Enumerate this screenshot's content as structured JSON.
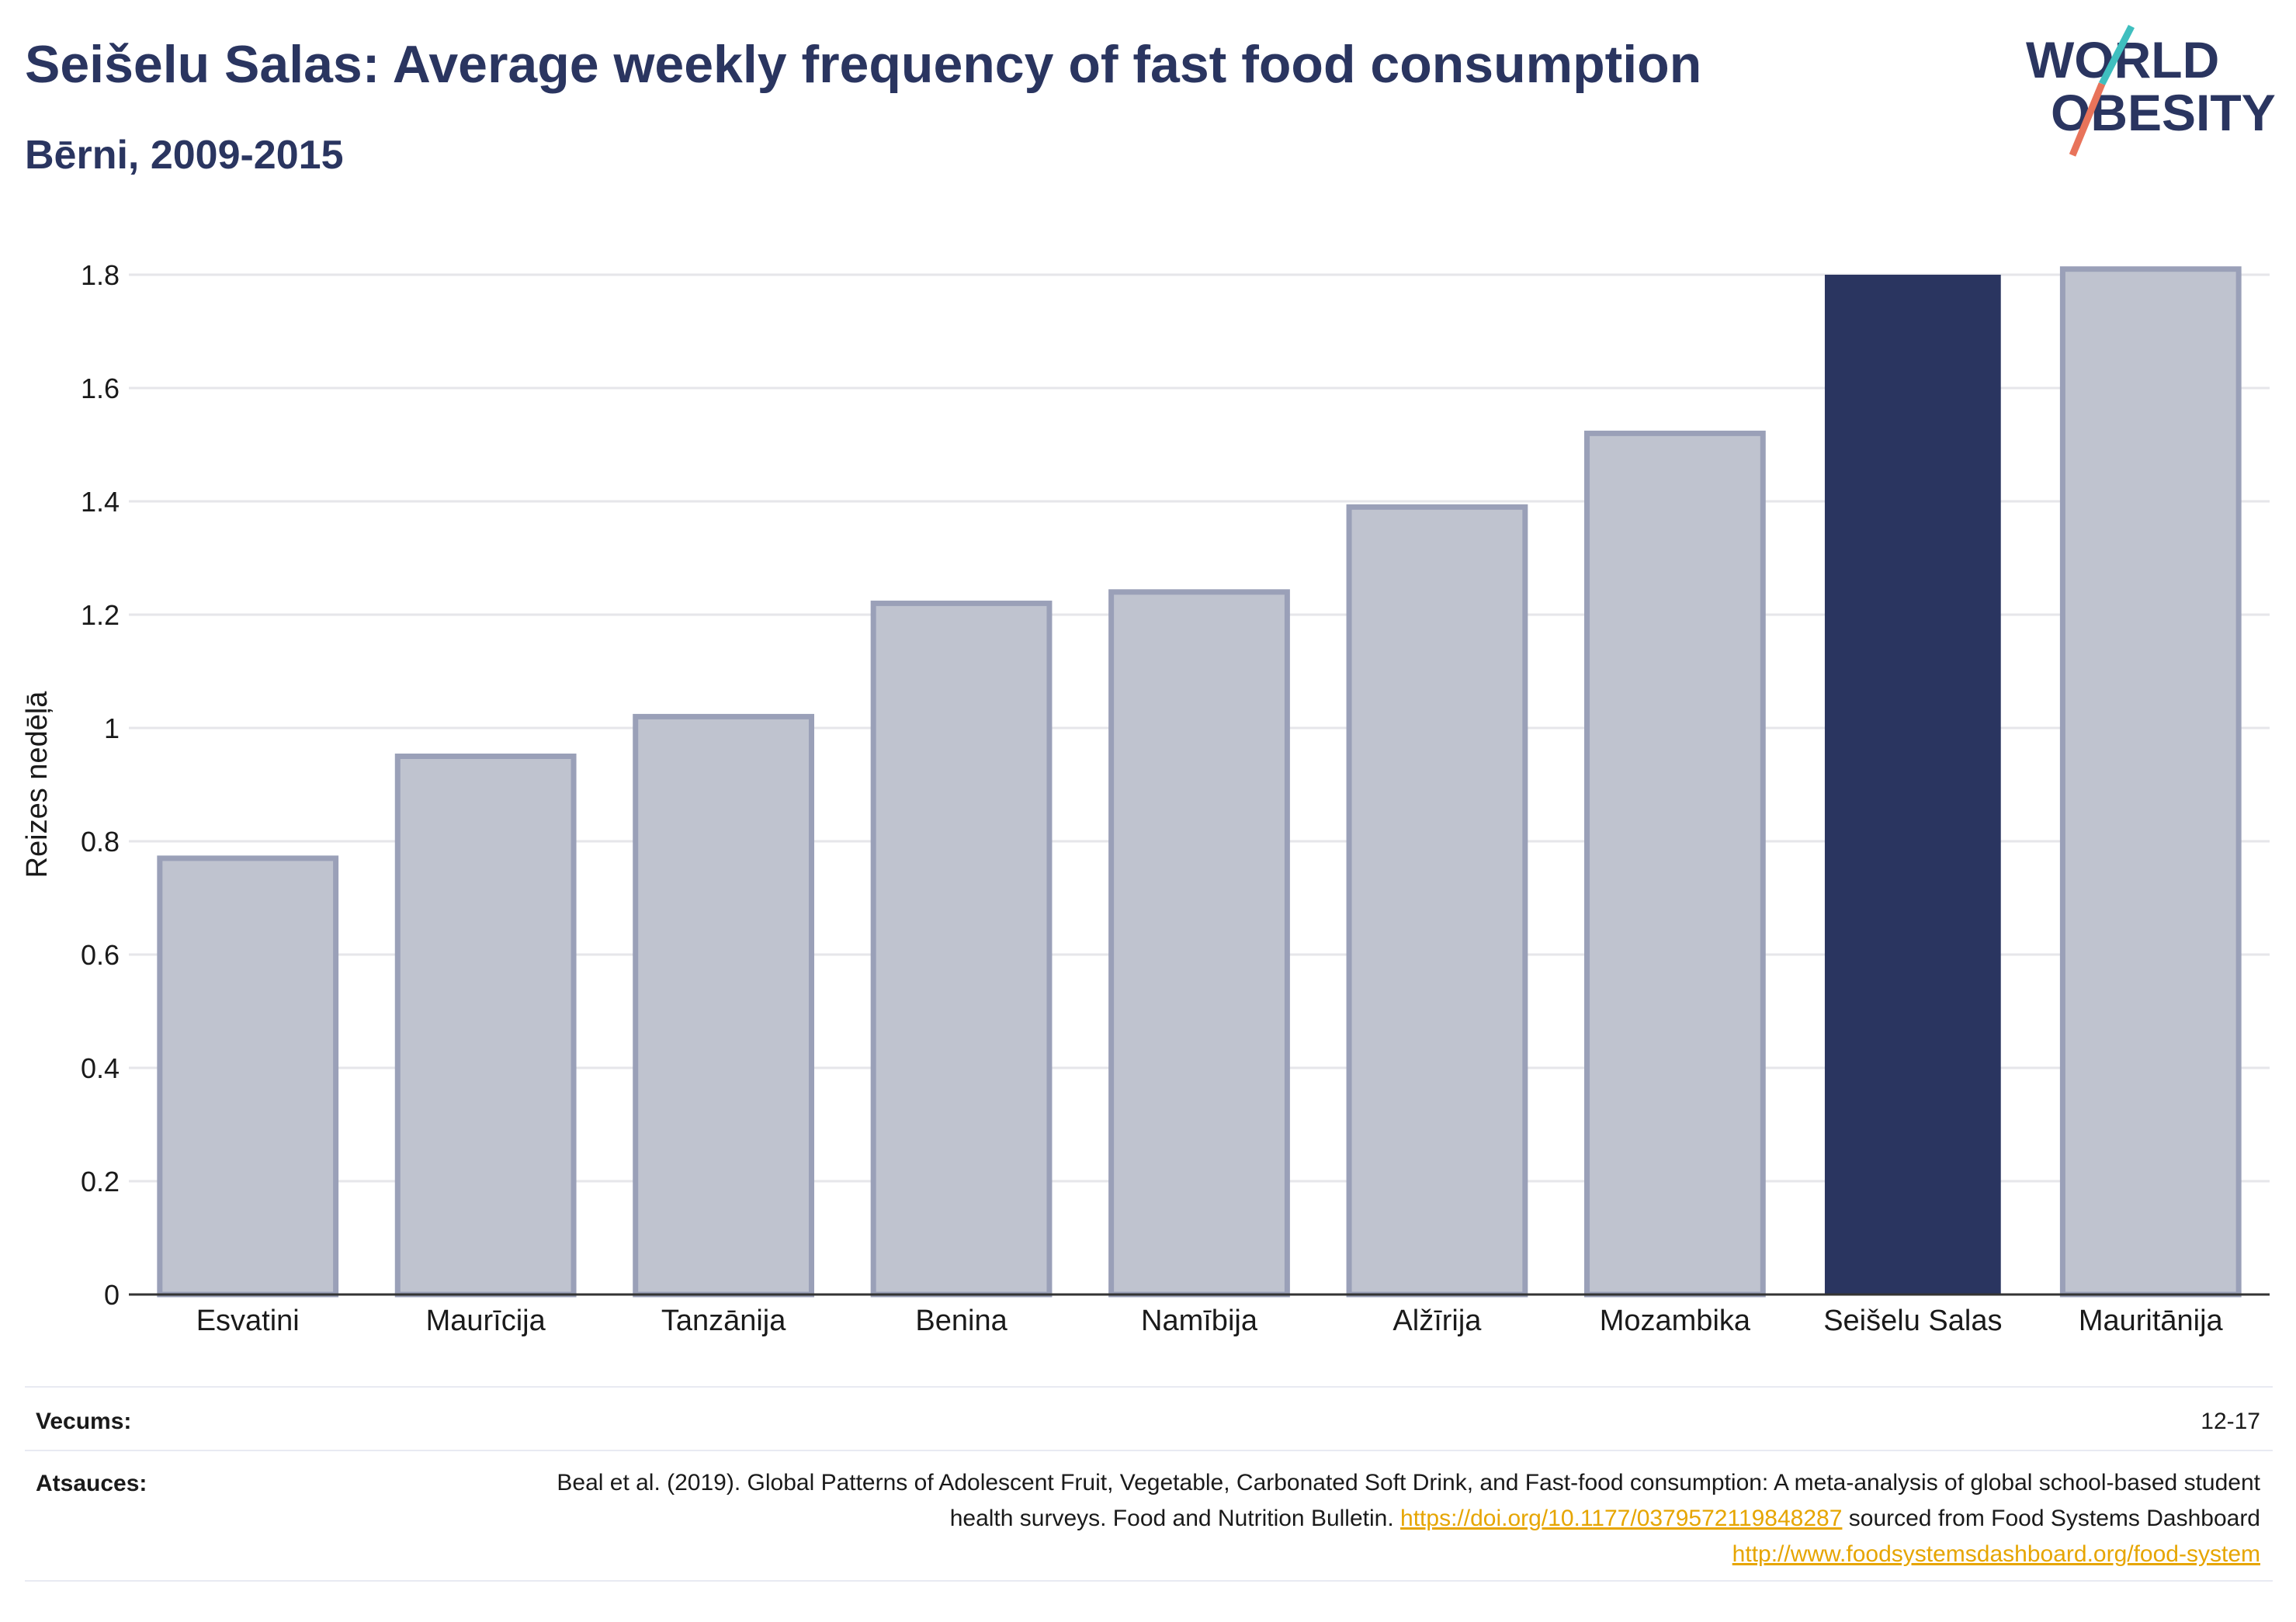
{
  "header": {
    "title": "Seišelu Salas: Average weekly frequency of fast food consumption",
    "subtitle": "Bērni, 2009-2015"
  },
  "logo": {
    "line1": "WORLD",
    "line2": "OBESITY",
    "accent_teal": "#3fbfbf",
    "accent_coral": "#e8735a"
  },
  "colors": {
    "highlight": "#2a3560",
    "muted_fill": "#bfc3cf",
    "muted_stroke": "#9aa0b8",
    "text_dark": "#2a3560"
  },
  "chart_data": {
    "type": "bar",
    "title": "Seišelu Salas: Average weekly frequency of fast food consumption",
    "subtitle": "Bērni, 2009-2015",
    "ylabel": "Reizes nedēļā",
    "xlabel": "",
    "ylim": [
      0,
      1.8
    ],
    "yticks": [
      0,
      0.2,
      0.4,
      0.6,
      0.8,
      1,
      1.2,
      1.4,
      1.6,
      1.8
    ],
    "ytick_labels": [
      "0",
      "0.2",
      "0.4",
      "0.6",
      "0.8",
      "1",
      "1.2",
      "1.4",
      "1.6",
      "1.8"
    ],
    "grid": true,
    "categories": [
      "Esvatini",
      "Maurīcija",
      "Tanzānija",
      "Benina",
      "Namībija",
      "Alžīrija",
      "Mozambika",
      "Seišelu Salas",
      "Mauritānija"
    ],
    "values": [
      0.77,
      0.95,
      1.02,
      1.22,
      1.24,
      1.39,
      1.52,
      1.8,
      1.81
    ],
    "highlight": "Seišelu Salas"
  },
  "footer": {
    "age_label": "Vecums:",
    "age_value": "12-17",
    "sources_label": "Atsauces:",
    "source_text_1": "Beal et al. (2019). Global Patterns of Adolescent Fruit, Vegetable, Carbonated Soft Drink, and Fast-food consumption: A meta-analysis of global school-based student health surveys. Food and Nutrition Bulletin.",
    "source_link_1": "https://doi.org/10.1177/0379572119848287",
    "source_text_2": "sourced from Food Systems Dashboard",
    "source_link_2": "http://www.foodsystemsdashboard.org/food-system"
  }
}
